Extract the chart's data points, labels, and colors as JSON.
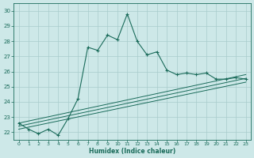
{
  "xlabel": "Humidex (Indice chaleur)",
  "bg_color": "#cde8e8",
  "grid_color": "#a8cccc",
  "line_color": "#1a6b5a",
  "xlim": [
    -0.5,
    23.5
  ],
  "ylim": [
    21.5,
    30.5
  ],
  "xticks": [
    0,
    1,
    2,
    3,
    4,
    5,
    6,
    7,
    8,
    9,
    10,
    11,
    12,
    13,
    14,
    15,
    16,
    17,
    18,
    19,
    20,
    21,
    22,
    23
  ],
  "yticks": [
    22,
    23,
    24,
    25,
    26,
    27,
    28,
    29,
    30
  ],
  "main_x": [
    0,
    1,
    2,
    3,
    4,
    5,
    6,
    7,
    8,
    9,
    10,
    11,
    12,
    13,
    14,
    15,
    16,
    17,
    18,
    19,
    20,
    21,
    22,
    23
  ],
  "main_y": [
    22.6,
    22.2,
    21.9,
    22.2,
    21.8,
    22.9,
    24.2,
    27.6,
    27.4,
    28.4,
    28.1,
    29.8,
    28.0,
    27.1,
    27.3,
    26.1,
    25.8,
    25.9,
    25.8,
    25.9,
    25.5,
    25.5,
    25.6,
    25.5
  ],
  "line2_x": [
    0,
    23
  ],
  "line2_y": [
    22.2,
    25.3
  ],
  "line3_x": [
    0,
    23
  ],
  "line3_y": [
    22.4,
    25.55
  ],
  "line4_x": [
    0,
    23
  ],
  "line4_y": [
    22.6,
    25.8
  ]
}
